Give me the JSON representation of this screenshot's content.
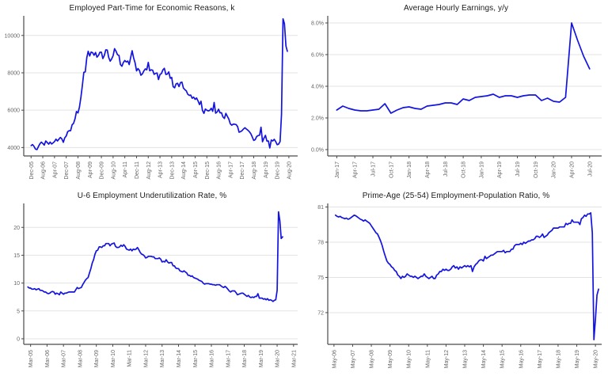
{
  "page": {
    "background": "#ffffff"
  },
  "colors": {
    "line": "#1414e0",
    "grid": "#e3e3e3",
    "axis": "#4a4a4a",
    "tick_label": "#666666",
    "title": "#1a1a1a"
  },
  "chart_data": [
    {
      "type": "line",
      "title": "Employed Part-Time for Economic Reasons, k",
      "ylabel": "",
      "xlabel": "",
      "legend": "none",
      "grid": "horizontal",
      "x_tick_labels": [
        "Dec-05",
        "Aug-06",
        "Apr-07",
        "Dec-07",
        "Aug-08",
        "Apr-09",
        "Dec-09",
        "Aug-10",
        "Apr-11",
        "Dec-11",
        "Aug-12",
        "Apr-13",
        "Dec-13",
        "Aug-14",
        "Apr-15",
        "Dec-15",
        "Aug-16",
        "Apr-17",
        "Dec-17",
        "Aug-18",
        "Apr-19",
        "Dec-19",
        "Aug-20"
      ],
      "x_tick_indices": [
        0,
        8,
        16,
        24,
        32,
        40,
        48,
        56,
        64,
        72,
        80,
        88,
        96,
        104,
        112,
        120,
        128,
        136,
        144,
        152,
        160,
        168,
        176
      ],
      "x_range": [
        -5,
        182
      ],
      "x_start_index": 0,
      "y_tick_labels": [
        "4000",
        "6000",
        "8000",
        "10000"
      ],
      "y_tick_values": [
        4000,
        6000,
        8000,
        10000
      ],
      "y_range": [
        3550,
        11050
      ],
      "values": [
        4100,
        4160,
        4060,
        3920,
        3890,
        4050,
        4200,
        4290,
        4220,
        4130,
        4350,
        4270,
        4180,
        4290,
        4190,
        4250,
        4320,
        4450,
        4350,
        4450,
        4540,
        4460,
        4280,
        4520,
        4620,
        4850,
        4900,
        4900,
        5220,
        5290,
        5540,
        5930,
        5850,
        6150,
        6690,
        7310,
        8030,
        8050,
        8800,
        9150,
        8900,
        9110,
        9080,
        8940,
        9090,
        8840,
        8930,
        9100,
        9100,
        8760,
        8930,
        9230,
        9220,
        8820,
        8620,
        8740,
        8920,
        9290,
        9150,
        8970,
        8930,
        8450,
        8350,
        8550,
        8660,
        8580,
        8630,
        8440,
        8830,
        9180,
        8790,
        8540,
        8100,
        8230,
        8120,
        7870,
        7950,
        8100,
        8210,
        8160,
        8560,
        8110,
        8160,
        8140,
        7920,
        7970,
        7990,
        7640,
        7910,
        7960,
        8160,
        8240,
        7910,
        7930,
        8050,
        7710,
        7750,
        7260,
        7200,
        7410,
        7440,
        7260,
        7480,
        7500,
        7180,
        7100,
        7030,
        6850,
        6790,
        6810,
        6640,
        6700,
        6580,
        6650,
        6490,
        6300,
        6480,
        5990,
        5830,
        6060,
        6000,
        5960,
        5990,
        6100,
        5940,
        6410,
        5840,
        5900,
        6050,
        5860,
        5860,
        5640,
        5560,
        5830,
        5670,
        5530,
        5270,
        5200,
        5250,
        5250,
        5230,
        5120,
        4820,
        4850,
        4900,
        4990,
        5060,
        4990,
        4930,
        4850,
        4740,
        4570,
        4380,
        4420,
        4590,
        4640,
        4660,
        5090,
        4310,
        4500,
        4650,
        4350,
        4350,
        3980,
        4400,
        4350,
        4440,
        4320,
        4150,
        4180,
        4320,
        5770,
        10890,
        10630,
        9430,
        9150
      ]
    },
    {
      "type": "line",
      "title": "Average Hourly Earnings, y/y",
      "ylabel": "",
      "xlabel": "",
      "legend": "none",
      "grid": "horizontal",
      "x_tick_labels": [
        "Jan-17",
        "Apr-17",
        "Jul-17",
        "Oct-17",
        "Jan-18",
        "Apr-18",
        "Jul-18",
        "Oct-18",
        "Jan-19",
        "Apr-19",
        "Jul-19",
        "Oct-19",
        "Jan-20",
        "Apr-20",
        "Jul-20"
      ],
      "x_tick_indices": [
        0,
        3,
        6,
        9,
        12,
        15,
        18,
        21,
        24,
        27,
        30,
        33,
        36,
        39,
        42
      ],
      "x_range": [
        -1.5,
        44
      ],
      "x_start_index": 0,
      "y_tick_labels": [
        "0.0%",
        "2.0%",
        "4.0%",
        "6.0%",
        "8.0%"
      ],
      "y_tick_values": [
        0,
        2,
        4,
        6,
        8
      ],
      "y_range": [
        -0.4,
        8.45
      ],
      "values": [
        2.5,
        2.75,
        2.6,
        2.5,
        2.45,
        2.45,
        2.5,
        2.55,
        2.9,
        2.3,
        2.5,
        2.65,
        2.7,
        2.6,
        2.55,
        2.75,
        2.8,
        2.85,
        2.95,
        2.95,
        2.85,
        3.2,
        3.1,
        3.3,
        3.35,
        3.4,
        3.5,
        3.3,
        3.4,
        3.4,
        3.3,
        3.4,
        3.45,
        3.45,
        3.1,
        3.25,
        3.05,
        3.0,
        3.3,
        8.0,
        6.9,
        5.9,
        5.1
      ]
    },
    {
      "type": "line",
      "title": "U-6 Employment Underutilization Rate, %",
      "ylabel": "",
      "xlabel": "",
      "legend": "none",
      "grid": "horizontal",
      "x_tick_labels": [
        "Mar-05",
        "Mar-06",
        "Mar-07",
        "Mar-08",
        "Mar-09",
        "Mar-10",
        "Mar-11",
        "Mar-12",
        "Mar-13",
        "Mar-14",
        "Mar-15",
        "Mar-16",
        "Mar-17",
        "Mar-18",
        "Mar-19",
        "Mar-20",
        "Mar-21"
      ],
      "x_tick_indices": [
        2,
        14,
        26,
        38,
        50,
        62,
        74,
        86,
        98,
        110,
        122,
        134,
        146,
        158,
        170,
        182,
        194
      ],
      "x_range": [
        -3,
        197
      ],
      "x_start_index": 0,
      "y_tick_labels": [
        "0",
        "5",
        "10",
        "15",
        "20"
      ],
      "y_tick_values": [
        0,
        5,
        10,
        15,
        20
      ],
      "y_range": [
        -1.0,
        24.3
      ],
      "values": [
        9.3,
        9.1,
        9.1,
        8.9,
        8.9,
        9.0,
        8.8,
        8.9,
        9.0,
        8.7,
        8.7,
        8.6,
        8.4,
        8.4,
        8.2,
        8.1,
        8.2,
        8.4,
        8.5,
        8.4,
        8.0,
        8.2,
        8.1,
        7.9,
        8.4,
        8.2,
        8.0,
        8.2,
        8.2,
        8.3,
        8.4,
        8.4,
        8.4,
        8.4,
        8.4,
        8.8,
        9.2,
        9.0,
        9.1,
        9.2,
        9.7,
        10.1,
        10.5,
        10.8,
        11.0,
        11.8,
        12.6,
        13.6,
        14.2,
        15.2,
        15.8,
        15.9,
        16.5,
        16.5,
        16.4,
        16.7,
        16.7,
        17.1,
        17.1,
        17.1,
        16.7,
        17.0,
        17.1,
        17.2,
        16.6,
        16.4,
        16.4,
        16.5,
        16.8,
        16.6,
        16.9,
        16.6,
        16.1,
        16.0,
        15.9,
        16.1,
        15.8,
        16.1,
        16.0,
        16.1,
        16.4,
        16.0,
        15.5,
        15.2,
        15.1,
        14.9,
        14.5,
        14.6,
        14.8,
        14.8,
        14.8,
        14.7,
        14.7,
        14.4,
        14.4,
        14.4,
        14.5,
        14.3,
        13.8,
        13.9,
        13.8,
        14.2,
        13.8,
        13.6,
        13.7,
        13.7,
        13.1,
        13.1,
        12.7,
        12.6,
        12.6,
        12.2,
        12.1,
        12.0,
        12.2,
        12.0,
        11.8,
        11.4,
        11.4,
        11.2,
        11.3,
        11.0,
        10.9,
        10.8,
        10.7,
        10.5,
        10.4,
        10.3,
        10.0,
        9.8,
        9.9,
        9.9,
        9.9,
        9.8,
        9.8,
        9.7,
        9.7,
        9.6,
        9.7,
        9.7,
        9.7,
        9.5,
        9.3,
        9.2,
        9.4,
        9.2,
        8.9,
        8.6,
        8.4,
        8.6,
        8.6,
        8.6,
        8.3,
        7.9,
        8.0,
        8.1,
        8.2,
        8.2,
        8.0,
        7.8,
        7.6,
        7.8,
        7.5,
        7.4,
        7.5,
        7.4,
        7.6,
        7.6,
        8.1,
        7.3,
        7.3,
        7.3,
        7.1,
        7.2,
        7.0,
        7.2,
        6.9,
        7.0,
        6.9,
        6.7,
        6.9,
        7.0,
        8.7,
        22.8,
        21.2,
        18.0,
        18.3
      ]
    },
    {
      "type": "line",
      "title": "Prime-Age (25-54) Employment-Population Ratio, %",
      "ylabel": "",
      "xlabel": "",
      "legend": "none",
      "grid": "horizontal",
      "x_tick_labels": [
        "May-06",
        "May-07",
        "May-08",
        "May-09",
        "May-10",
        "May-11",
        "May-12",
        "May-13",
        "May-14",
        "May-15",
        "May-16",
        "May-17",
        "May-18",
        "May-19",
        "May-20"
      ],
      "x_tick_indices": [
        0,
        12,
        24,
        36,
        48,
        60,
        72,
        84,
        96,
        108,
        120,
        132,
        144,
        156,
        168
      ],
      "x_range": [
        -4,
        172
      ],
      "x_start_index": 1,
      "y_tick_labels": [
        "72",
        "75",
        "78",
        "81"
      ],
      "y_tick_values": [
        72,
        75,
        78,
        81
      ],
      "y_range": [
        69.3,
        81.3
      ],
      "values": [
        80.3,
        80.2,
        80.15,
        80.2,
        80.1,
        80.05,
        80.0,
        80.05,
        79.95,
        80.0,
        80.1,
        80.2,
        80.3,
        80.25,
        80.15,
        80.05,
        79.95,
        79.9,
        79.8,
        79.9,
        79.8,
        79.7,
        79.6,
        79.4,
        79.2,
        79.0,
        78.8,
        78.7,
        78.4,
        78.1,
        77.7,
        77.2,
        76.8,
        76.4,
        76.2,
        76.1,
        75.9,
        75.8,
        75.6,
        75.5,
        75.2,
        75.1,
        74.9,
        75.1,
        75.0,
        75.1,
        75.3,
        75.2,
        75.1,
        75.1,
        75.0,
        75.1,
        75.0,
        74.9,
        75.0,
        75.1,
        75.1,
        75.3,
        75.1,
        75.0,
        74.9,
        75.0,
        75.1,
        74.9,
        74.9,
        75.2,
        75.3,
        75.5,
        75.5,
        75.7,
        75.6,
        75.7,
        75.6,
        75.6,
        75.7,
        75.9,
        76.0,
        75.8,
        75.9,
        75.7,
        75.9,
        75.8,
        75.9,
        76.0,
        75.9,
        76.0,
        75.9,
        76.0,
        75.5,
        75.9,
        76.1,
        76.2,
        76.4,
        76.5,
        76.5,
        76.4,
        76.8,
        76.6,
        76.7,
        76.8,
        76.9,
        76.9,
        77.0,
        77.1,
        77.2,
        77.2,
        77.2,
        77.2,
        77.3,
        77.1,
        77.2,
        77.2,
        77.2,
        77.4,
        77.4,
        77.7,
        77.8,
        77.8,
        77.8,
        77.9,
        77.8,
        78.0,
        77.9,
        78.0,
        78.1,
        78.1,
        78.2,
        78.2,
        78.3,
        78.5,
        78.5,
        78.4,
        78.5,
        78.7,
        78.4,
        78.5,
        78.6,
        78.8,
        78.9,
        79.0,
        79.2,
        79.2,
        79.2,
        79.2,
        79.3,
        79.3,
        79.3,
        79.3,
        79.6,
        79.5,
        79.6,
        79.6,
        79.9,
        79.7,
        79.7,
        79.7,
        79.7,
        79.5,
        80.0,
        80.1,
        80.3,
        80.2,
        80.4,
        80.4,
        80.5,
        78.8,
        69.7,
        71.4,
        73.5,
        74.0
      ]
    }
  ]
}
